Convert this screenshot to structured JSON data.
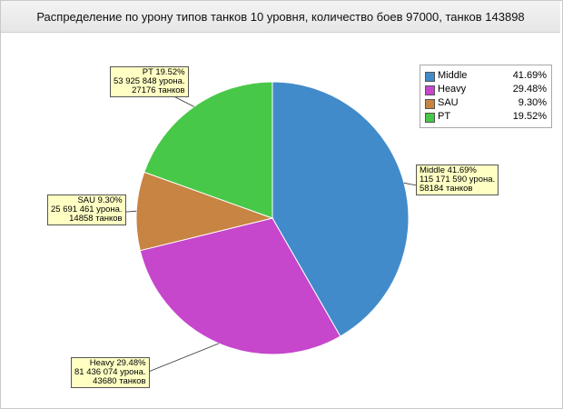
{
  "chart_data": {
    "type": "pie",
    "title": "Распределение по урону типов танков 10 уровня, количество боев 97000, танков 143898",
    "slices": [
      {
        "label": "Middle",
        "percent": 41.69,
        "percent_text": "41.69%",
        "color": "#428bca",
        "callout": [
          "Middle 41.69%",
          "115 171 590 урона.",
          "58184 танков"
        ]
      },
      {
        "label": "Heavy",
        "percent": 29.48,
        "percent_text": "29.48%",
        "color": "#c646cc",
        "callout": [
          "Heavy 29.48%",
          "81 436 074 урона.",
          "43680 танков"
        ]
      },
      {
        "label": "SAU",
        "percent": 9.3,
        "percent_text": "9.30%",
        "color": "#c88442",
        "callout": [
          "SAU 9.30%",
          "25 691 461 урона.",
          "14858 танков"
        ]
      },
      {
        "label": "PT",
        "percent": 19.52,
        "percent_text": "19.52%",
        "color": "#48c848",
        "callout": [
          "PT 19.52%",
          "53 925 848 урона.",
          "27176 танков"
        ]
      }
    ],
    "legend_position": "top-right"
  }
}
